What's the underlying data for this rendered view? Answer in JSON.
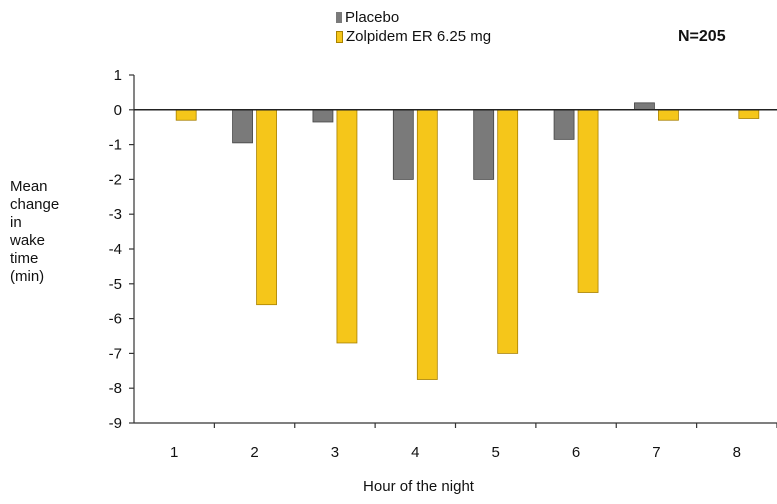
{
  "chart_data": {
    "type": "bar",
    "categories": [
      "1",
      "2",
      "3",
      "4",
      "5",
      "6",
      "7",
      "8"
    ],
    "series": [
      {
        "name": "Placebo",
        "values": [
          0,
          -0.95,
          -0.35,
          -2.0,
          -2.0,
          -0.85,
          0.2,
          0
        ],
        "color": "#7a7a7a"
      },
      {
        "name": "Zolpidem ER 6.25 mg",
        "values": [
          -0.3,
          -5.6,
          -6.7,
          -7.75,
          -7.0,
          -5.25,
          -0.3,
          -0.25
        ],
        "color": "#f5c61a"
      }
    ],
    "ylim": [
      -9,
      1
    ],
    "yticks": [
      "1",
      "0",
      "-1",
      "-2",
      "-3",
      "-4",
      "-5",
      "-6",
      "-7",
      "-8",
      "-9"
    ],
    "ylabel_lines": [
      "Mean",
      "change",
      "in",
      "wake",
      "time",
      "(min)"
    ],
    "xlabel": "Hour of the night",
    "annotation": "N=205",
    "legend_position": "top"
  }
}
